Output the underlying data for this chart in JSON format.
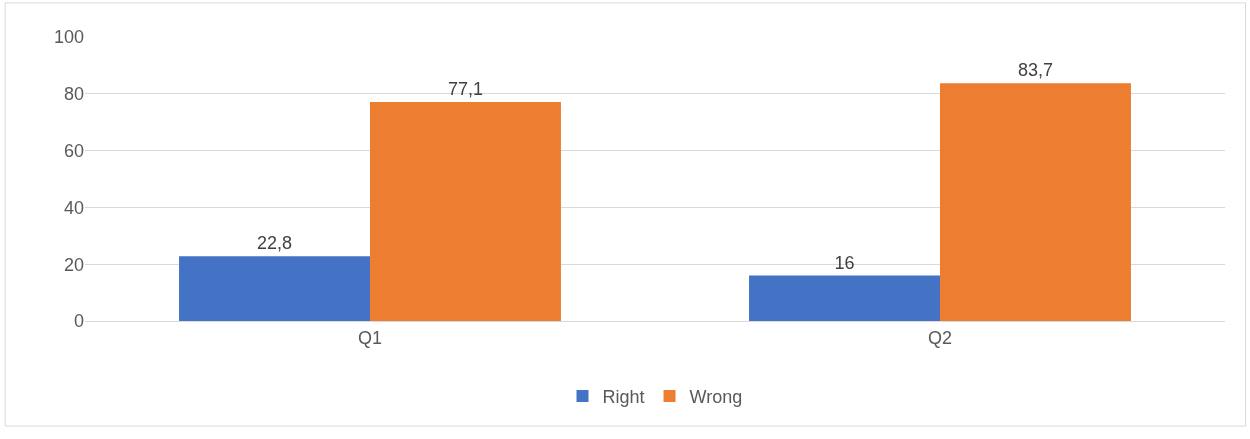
{
  "chart_data": {
    "type": "bar",
    "categories": [
      "Q1",
      "Q2"
    ],
    "series": [
      {
        "name": "Right",
        "color": "#4472c4",
        "values": [
          22.8,
          16
        ],
        "value_labels": [
          "22,8",
          "16"
        ]
      },
      {
        "name": "Wrong",
        "color": "#ed7d31",
        "values": [
          77.1,
          83.7
        ],
        "value_labels": [
          "77,1",
          "83,7"
        ]
      }
    ],
    "ylim": [
      0,
      100
    ],
    "yticks": [
      0,
      20,
      40,
      60,
      80,
      100
    ],
    "grid": "y",
    "legend": "bottom"
  }
}
